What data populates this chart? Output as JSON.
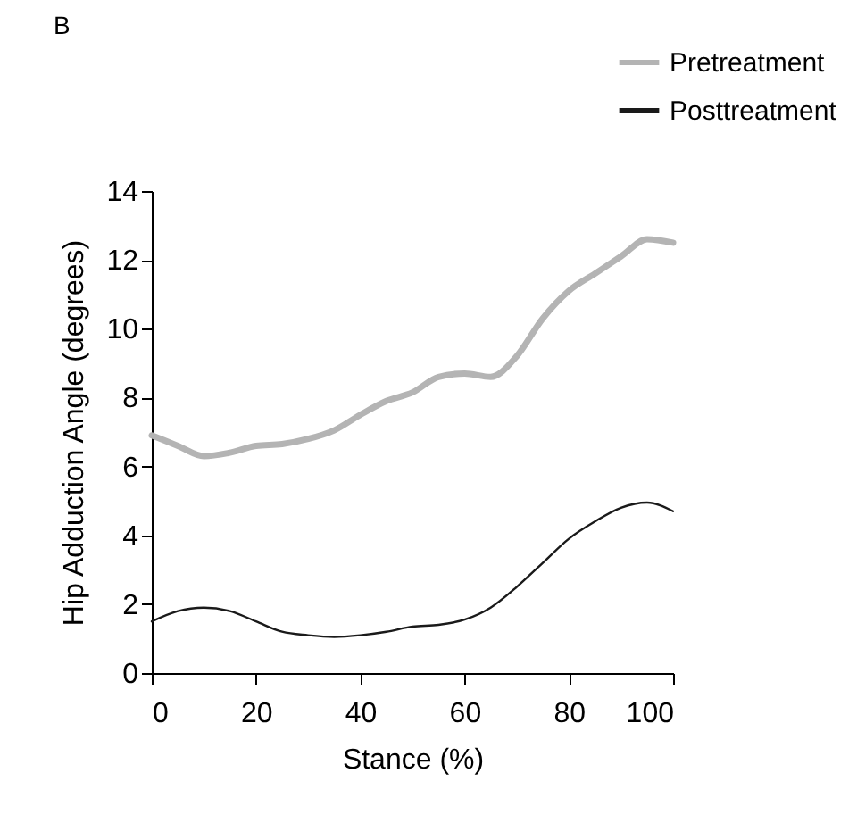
{
  "chart_data": {
    "type": "line",
    "title": "B",
    "xlabel": "Stance (%)",
    "ylabel": "Hip Adduction Angle (degrees)",
    "x": [
      0,
      5,
      10,
      15,
      20,
      25,
      30,
      35,
      40,
      45,
      50,
      55,
      60,
      65,
      70,
      75,
      80,
      85,
      90,
      95,
      100
    ],
    "series": [
      {
        "name": "Pretreatment",
        "color": "#b4b4b4",
        "values": [
          6.9,
          6.6,
          6.3,
          6.4,
          6.6,
          6.65,
          6.8,
          7.05,
          7.5,
          7.9,
          8.15,
          8.6,
          8.7,
          8.6,
          9.2,
          10.3,
          11.1,
          11.6,
          12.1,
          12.6,
          12.5
        ]
      },
      {
        "name": "Posttreatment",
        "color": "#1a1a1a",
        "values": [
          1.5,
          1.8,
          1.9,
          1.8,
          1.5,
          1.2,
          1.1,
          1.05,
          1.1,
          1.2,
          1.35,
          1.4,
          1.55,
          1.9,
          2.5,
          3.2,
          3.9,
          4.4,
          4.8,
          4.95,
          4.7
        ]
      }
    ],
    "xlim": [
      0,
      100
    ],
    "xticks": [
      0,
      20,
      40,
      60,
      80,
      100
    ],
    "ylim": [
      0,
      14
    ],
    "yticks": [
      0,
      2,
      4,
      6,
      8,
      10,
      12,
      14
    ],
    "grid": false,
    "legend": "top right",
    "marker": "none",
    "line_style": "solid"
  }
}
